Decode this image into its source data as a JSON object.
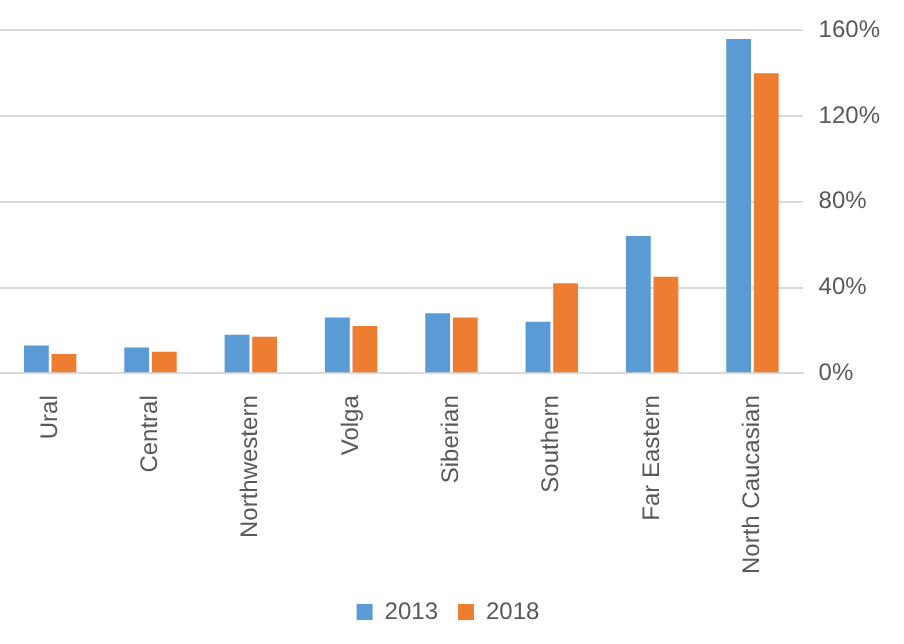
{
  "chart_data": {
    "type": "bar",
    "categories": [
      "Ural",
      "Central",
      "Northwestern",
      "Volga",
      "Siberian",
      "Southern",
      "Far Eastern",
      "North Caucasian"
    ],
    "series": [
      {
        "name": "2013",
        "color": "#5b9bd5",
        "values": [
          13,
          12,
          18,
          26,
          28,
          24,
          64,
          156
        ]
      },
      {
        "name": "2018",
        "color": "#ed7d31",
        "values": [
          9,
          10,
          17,
          22,
          26,
          42,
          45,
          140
        ]
      }
    ],
    "ylim": [
      0,
      160
    ],
    "yticks": [
      {
        "value": 0,
        "label": "0%"
      },
      {
        "value": 40,
        "label": "40%"
      },
      {
        "value": 80,
        "label": "80%"
      },
      {
        "value": 120,
        "label": "120%"
      },
      {
        "value": 160,
        "label": "160%"
      }
    ],
    "grid": "y",
    "legend": "bottom"
  }
}
